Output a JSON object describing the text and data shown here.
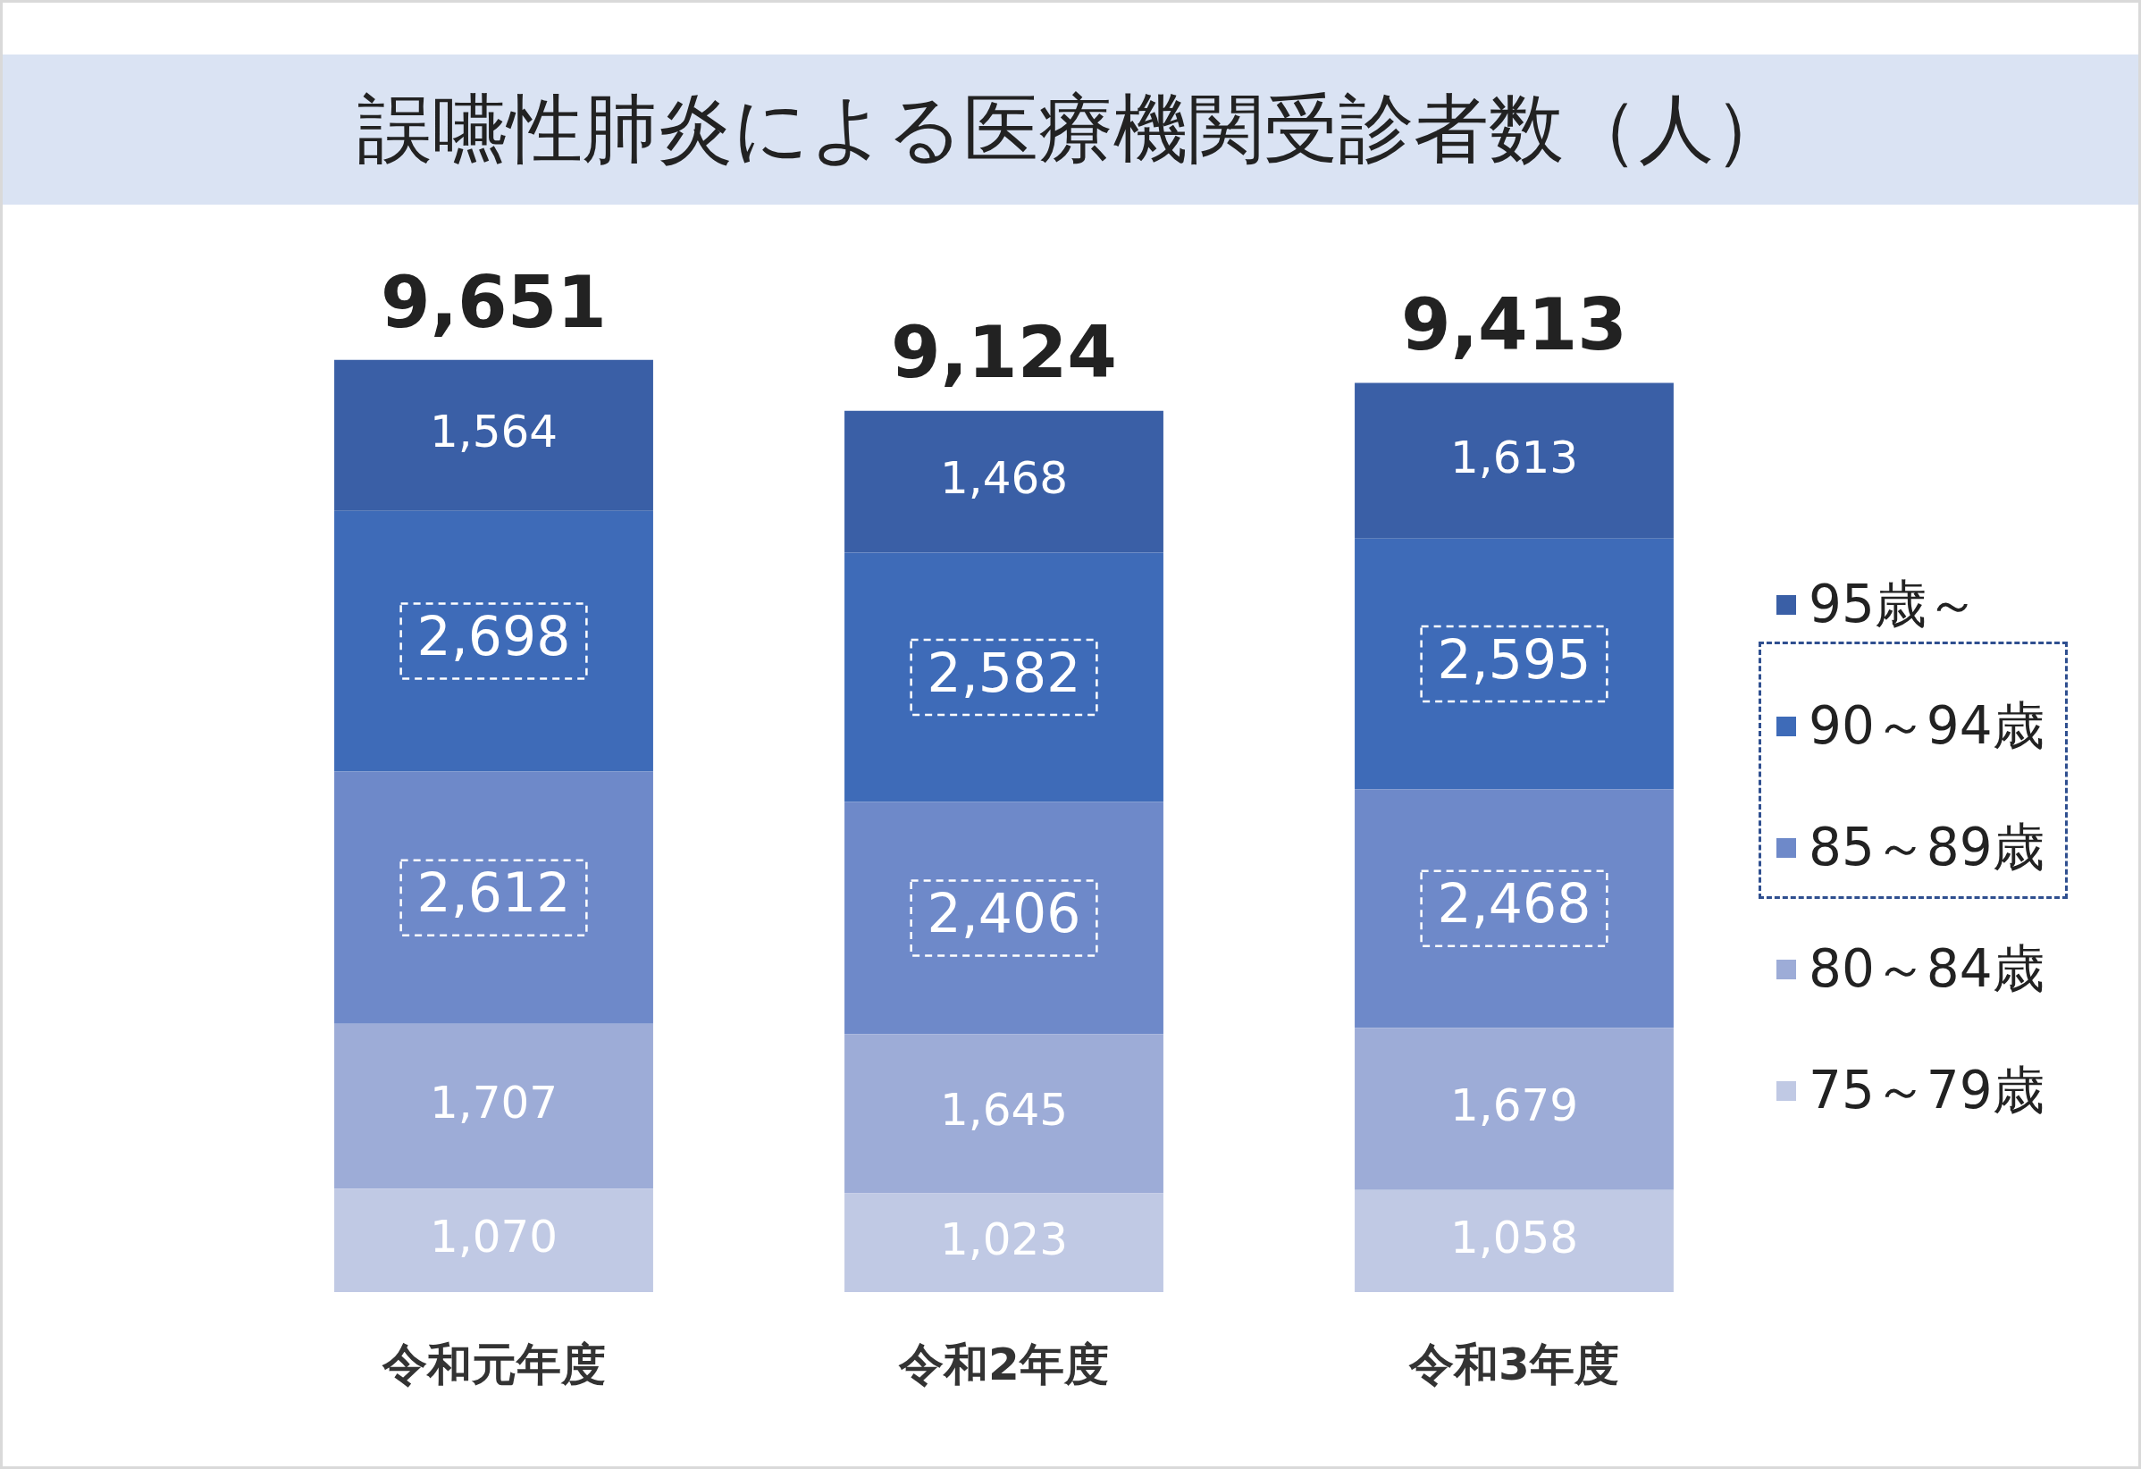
{
  "chart_data": {
    "type": "bar",
    "title": "誤嚥性肺炎による医療機関受診者数（人）",
    "categories": [
      "令和元年度",
      "令和2年度",
      "令和3年度"
    ],
    "stacked": true,
    "legend": "right",
    "grid": false,
    "series": [
      {
        "name": "75～79歳",
        "color": "#c0c9e4",
        "values": [
          1070,
          1023,
          1058
        ],
        "value_labels": [
          "1,070",
          "1,023",
          "1,058"
        ]
      },
      {
        "name": "80～84歳",
        "color": "#9dacd7",
        "values": [
          1707,
          1645,
          1679
        ],
        "value_labels": [
          "1,707",
          "1,645",
          "1,679"
        ]
      },
      {
        "name": "85～89歳",
        "color": "#6e89c9",
        "values": [
          2612,
          2406,
          2468
        ],
        "value_labels": [
          "2,612",
          "2,406",
          "2,468"
        ]
      },
      {
        "name": "90～94歳",
        "color": "#3e6bb8",
        "values": [
          2698,
          2582,
          2595
        ],
        "value_labels": [
          "2,698",
          "2,582",
          "2,595"
        ]
      },
      {
        "name": "95歳～",
        "color": "#3a5fa6",
        "values": [
          1564,
          1468,
          1613
        ],
        "value_labels": [
          "1,564",
          "1,468",
          "1,613"
        ]
      }
    ],
    "totals": [
      "9,651",
      "9,124",
      "9,413"
    ]
  }
}
